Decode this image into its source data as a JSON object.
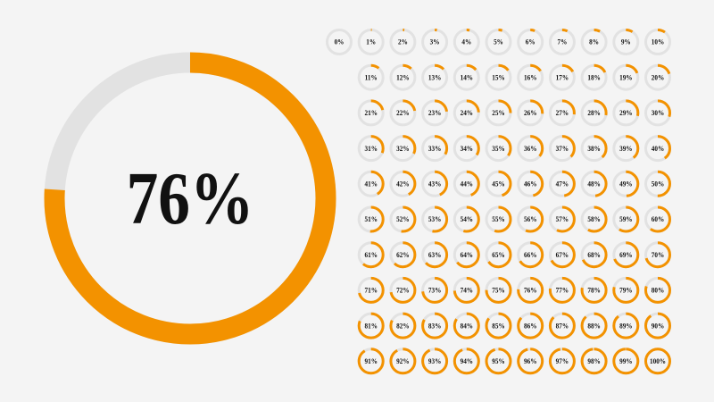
{
  "chart_data": [
    {
      "type": "donut",
      "values": [
        76
      ],
      "value_labels": [
        "76%"
      ],
      "color": "#f39200",
      "track_color": "#e2e2e2"
    },
    {
      "type": "donut",
      "values": [
        0,
        1,
        2,
        3,
        4,
        5,
        6,
        7,
        8,
        9,
        10,
        11,
        12,
        13,
        14,
        15,
        16,
        17,
        18,
        19,
        20,
        21,
        22,
        23,
        24,
        25,
        26,
        27,
        28,
        29,
        30,
        31,
        32,
        33,
        34,
        35,
        36,
        37,
        38,
        39,
        40,
        41,
        42,
        43,
        44,
        45,
        46,
        47,
        48,
        49,
        50,
        51,
        52,
        53,
        54,
        55,
        56,
        57,
        58,
        59,
        60,
        61,
        62,
        63,
        64,
        65,
        66,
        67,
        68,
        69,
        70,
        71,
        72,
        73,
        74,
        75,
        76,
        77,
        78,
        79,
        80,
        81,
        82,
        83,
        84,
        85,
        86,
        87,
        88,
        89,
        90,
        91,
        92,
        93,
        94,
        95,
        96,
        97,
        98,
        99,
        100
      ],
      "value_labels": [
        "0%",
        "1%",
        "2%",
        "3%",
        "4%",
        "5%",
        "6%",
        "7%",
        "8%",
        "9%",
        "10%",
        "11%",
        "12%",
        "13%",
        "14%",
        "15%",
        "16%",
        "17%",
        "18%",
        "19%",
        "20%",
        "21%",
        "22%",
        "23%",
        "24%",
        "25%",
        "26%",
        "27%",
        "28%",
        "29%",
        "30%",
        "31%",
        "32%",
        "33%",
        "34%",
        "35%",
        "36%",
        "37%",
        "38%",
        "39%",
        "40%",
        "41%",
        "42%",
        "43%",
        "44%",
        "45%",
        "46%",
        "47%",
        "48%",
        "49%",
        "50%",
        "51%",
        "52%",
        "53%",
        "54%",
        "55%",
        "56%",
        "57%",
        "58%",
        "59%",
        "60%",
        "61%",
        "62%",
        "63%",
        "64%",
        "65%",
        "66%",
        "67%",
        "68%",
        "69%",
        "70%",
        "71%",
        "72%",
        "73%",
        "74%",
        "75%",
        "76%",
        "77%",
        "78%",
        "79%",
        "80%",
        "81%",
        "82%",
        "83%",
        "84%",
        "85%",
        "86%",
        "87%",
        "88%",
        "89%",
        "90%",
        "91%",
        "92%",
        "93%",
        "94%",
        "95%",
        "96%",
        "97%",
        "98%",
        "99%",
        "100%"
      ],
      "color": "#f39200",
      "track_color": "#e2e2e2"
    }
  ]
}
